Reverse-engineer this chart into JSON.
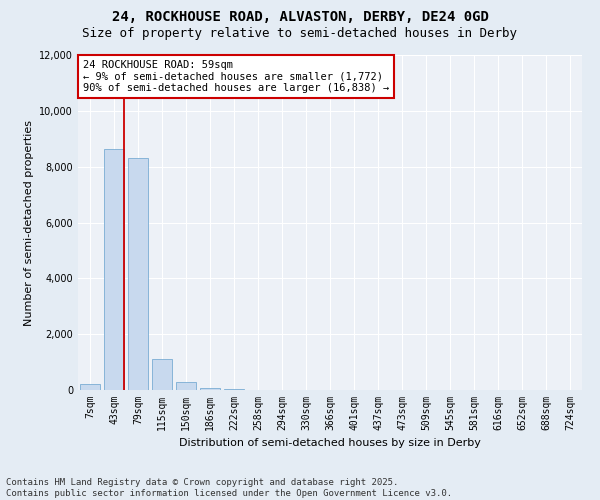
{
  "title_line1": "24, ROCKHOUSE ROAD, ALVASTON, DERBY, DE24 0GD",
  "title_line2": "Size of property relative to semi-detached houses in Derby",
  "xlabel": "Distribution of semi-detached houses by size in Derby",
  "ylabel": "Number of semi-detached properties",
  "categories": [
    "7sqm",
    "43sqm",
    "79sqm",
    "115sqm",
    "150sqm",
    "186sqm",
    "222sqm",
    "258sqm",
    "294sqm",
    "330sqm",
    "366sqm",
    "401sqm",
    "437sqm",
    "473sqm",
    "509sqm",
    "545sqm",
    "581sqm",
    "616sqm",
    "652sqm",
    "688sqm",
    "724sqm"
  ],
  "values": [
    200,
    8650,
    8300,
    1100,
    300,
    80,
    25,
    0,
    0,
    0,
    0,
    0,
    0,
    0,
    0,
    0,
    0,
    0,
    0,
    0,
    0
  ],
  "bar_color": "#c8d9ee",
  "bar_edge_color": "#7aadd4",
  "vline_x_index": 1,
  "vline_color": "#cc0000",
  "annotation_title": "24 ROCKHOUSE ROAD: 59sqm",
  "annotation_line1": "← 9% of semi-detached houses are smaller (1,772)",
  "annotation_line2": "90% of semi-detached houses are larger (16,838) →",
  "annotation_box_facecolor": "#ffffff",
  "annotation_box_edgecolor": "#cc0000",
  "ylim": [
    0,
    12000
  ],
  "yticks": [
    0,
    2000,
    4000,
    6000,
    8000,
    10000,
    12000
  ],
  "footer_line1": "Contains HM Land Registry data © Crown copyright and database right 2025.",
  "footer_line2": "Contains public sector information licensed under the Open Government Licence v3.0.",
  "bg_color": "#e4ecf4",
  "plot_bg_color": "#edf1f7",
  "grid_color": "#ffffff",
  "title_fontsize": 10,
  "subtitle_fontsize": 9,
  "axis_label_fontsize": 8,
  "tick_fontsize": 7,
  "annotation_fontsize": 7.5,
  "footer_fontsize": 6.5
}
